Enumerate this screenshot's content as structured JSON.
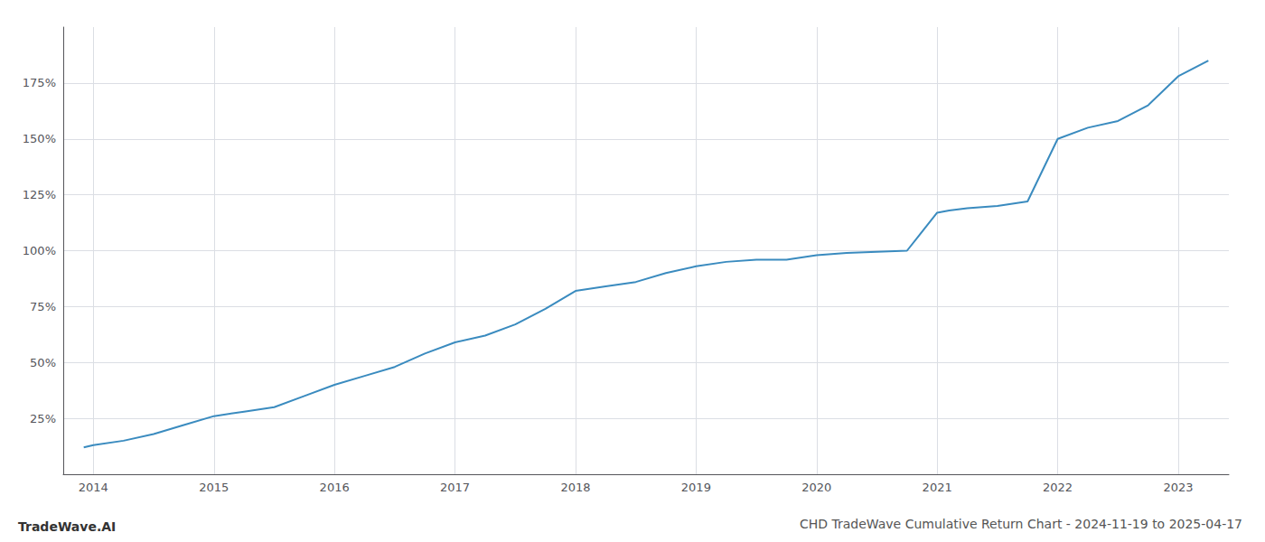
{
  "chart_data": {
    "type": "line",
    "title": "CHD TradeWave Cumulative Return Chart - 2024-11-19 to 2025-04-17",
    "annotations": [
      "TradeWave.AI"
    ],
    "x": [
      2013.92,
      2014.0,
      2014.25,
      2014.5,
      2014.75,
      2015.0,
      2015.25,
      2015.5,
      2015.75,
      2016.0,
      2016.25,
      2016.5,
      2016.75,
      2017.0,
      2017.25,
      2017.5,
      2017.75,
      2018.0,
      2018.25,
      2018.5,
      2018.75,
      2019.0,
      2019.25,
      2019.5,
      2019.75,
      2020.0,
      2020.25,
      2020.5,
      2020.75,
      2021.0,
      2021.1,
      2021.25,
      2021.5,
      2021.75,
      2022.0,
      2022.25,
      2022.5,
      2022.75,
      2023.0,
      2023.25
    ],
    "values": [
      12,
      13,
      15,
      18,
      22,
      26,
      28,
      30,
      35,
      40,
      44,
      48,
      54,
      59,
      62,
      67,
      74,
      82,
      84,
      86,
      90,
      93,
      95,
      96,
      96,
      98,
      99,
      99.5,
      100,
      117,
      118,
      119,
      120,
      122,
      150,
      155,
      158,
      165,
      178,
      185
    ],
    "color": "#3a8bbf",
    "xlim": [
      2013.75,
      2023.42
    ],
    "xticks": [
      2014,
      2015,
      2016,
      2017,
      2018,
      2019,
      2020,
      2021,
      2022,
      2023
    ],
    "ylim": [
      0,
      200
    ],
    "yticks": [
      {
        "value": 25,
        "label": "25%"
      },
      {
        "value": 50,
        "label": "50%"
      },
      {
        "value": 75,
        "label": "75%"
      },
      {
        "value": 100,
        "label": "100%"
      },
      {
        "value": 125,
        "label": "125%"
      },
      {
        "value": 150,
        "label": "150%"
      },
      {
        "value": 175,
        "label": "175%"
      }
    ],
    "grid": true
  }
}
